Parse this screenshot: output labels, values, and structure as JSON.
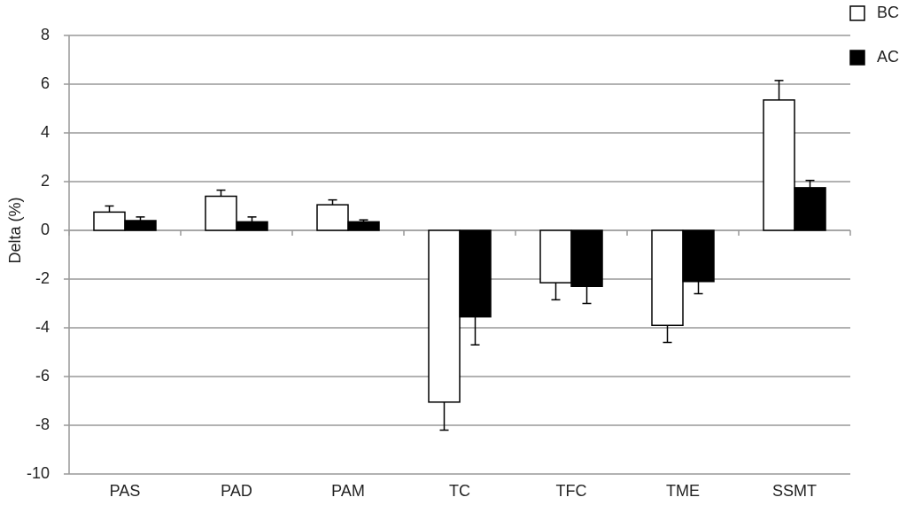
{
  "chart_data": {
    "type": "bar",
    "y_label": "Delta (%)",
    "categories": [
      "PAS",
      "PAD",
      "PAM",
      "TC",
      "TFC",
      "TME",
      "SSMT"
    ],
    "series": [
      {
        "name": "BC",
        "color": "#ffffff",
        "values": [
          0.75,
          1.4,
          1.05,
          -7.05,
          -2.15,
          -3.9,
          5.35
        ],
        "errors": [
          0.25,
          0.25,
          0.2,
          1.15,
          0.7,
          0.7,
          0.8
        ]
      },
      {
        "name": "AC",
        "color": "#000000",
        "values": [
          0.4,
          0.35,
          0.35,
          -3.55,
          -2.3,
          -2.1,
          1.75
        ],
        "errors": [
          0.15,
          0.2,
          0.08,
          1.15,
          0.7,
          0.5,
          0.3
        ]
      }
    ],
    "ylim": [
      -10,
      8
    ],
    "yticks": [
      -10,
      -8,
      -6,
      -4,
      -2,
      0,
      2,
      4,
      6,
      8
    ],
    "grid": true
  }
}
